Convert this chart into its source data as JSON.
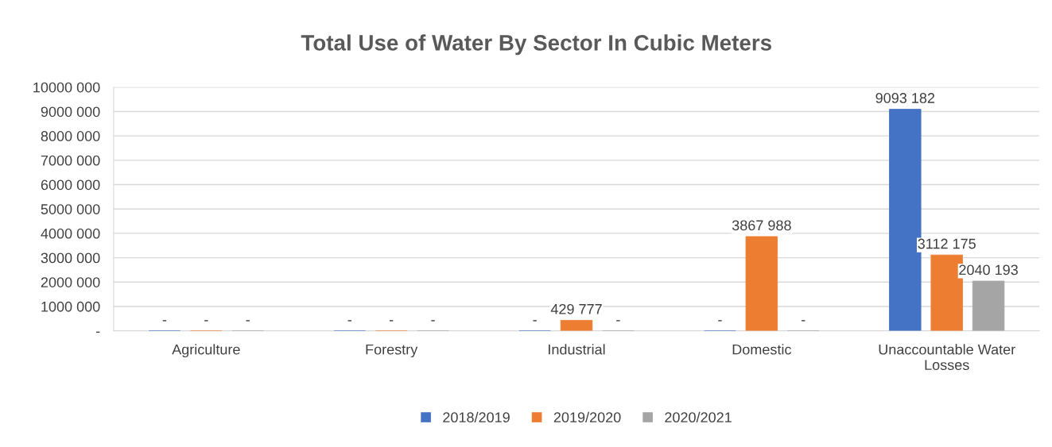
{
  "chart_data": {
    "type": "bar",
    "title": "Total Use of Water By Sector In Cubic Meters",
    "categories": [
      "Agriculture",
      "Forestry",
      "Industrial",
      "Domestic",
      "Unaccountable Water Losses"
    ],
    "series": [
      {
        "name": "2018/2019",
        "color": "#4472c4",
        "values": [
          0,
          0,
          0,
          0,
          9093182
        ],
        "value_labels": [
          "-",
          "-",
          "-",
          "-",
          "9093 182"
        ]
      },
      {
        "name": "2019/2020",
        "color": "#ed7d31",
        "values": [
          0,
          0,
          429777,
          3867988,
          3112175
        ],
        "value_labels": [
          "-",
          "-",
          "429 777",
          "3867 988",
          "3112 175"
        ]
      },
      {
        "name": "2020/2021",
        "color": "#a5a5a5",
        "values": [
          0,
          0,
          0,
          0,
          2040193
        ],
        "value_labels": [
          "-",
          "-",
          "-",
          "-",
          "2040 193"
        ]
      }
    ],
    "ylim": [
      0,
      10000000
    ],
    "yticks": [
      {
        "value": 0,
        "label": "-"
      },
      {
        "value": 1000000,
        "label": "1000 000"
      },
      {
        "value": 2000000,
        "label": "2000 000"
      },
      {
        "value": 3000000,
        "label": "3000 000"
      },
      {
        "value": 4000000,
        "label": "4000 000"
      },
      {
        "value": 5000000,
        "label": "5000 000"
      },
      {
        "value": 6000000,
        "label": "6000 000"
      },
      {
        "value": 7000000,
        "label": "7000 000"
      },
      {
        "value": 8000000,
        "label": "8000 000"
      },
      {
        "value": 9000000,
        "label": "9000 000"
      },
      {
        "value": 10000000,
        "label": "10000 000"
      }
    ],
    "grid": "y",
    "legend": "bottom"
  }
}
